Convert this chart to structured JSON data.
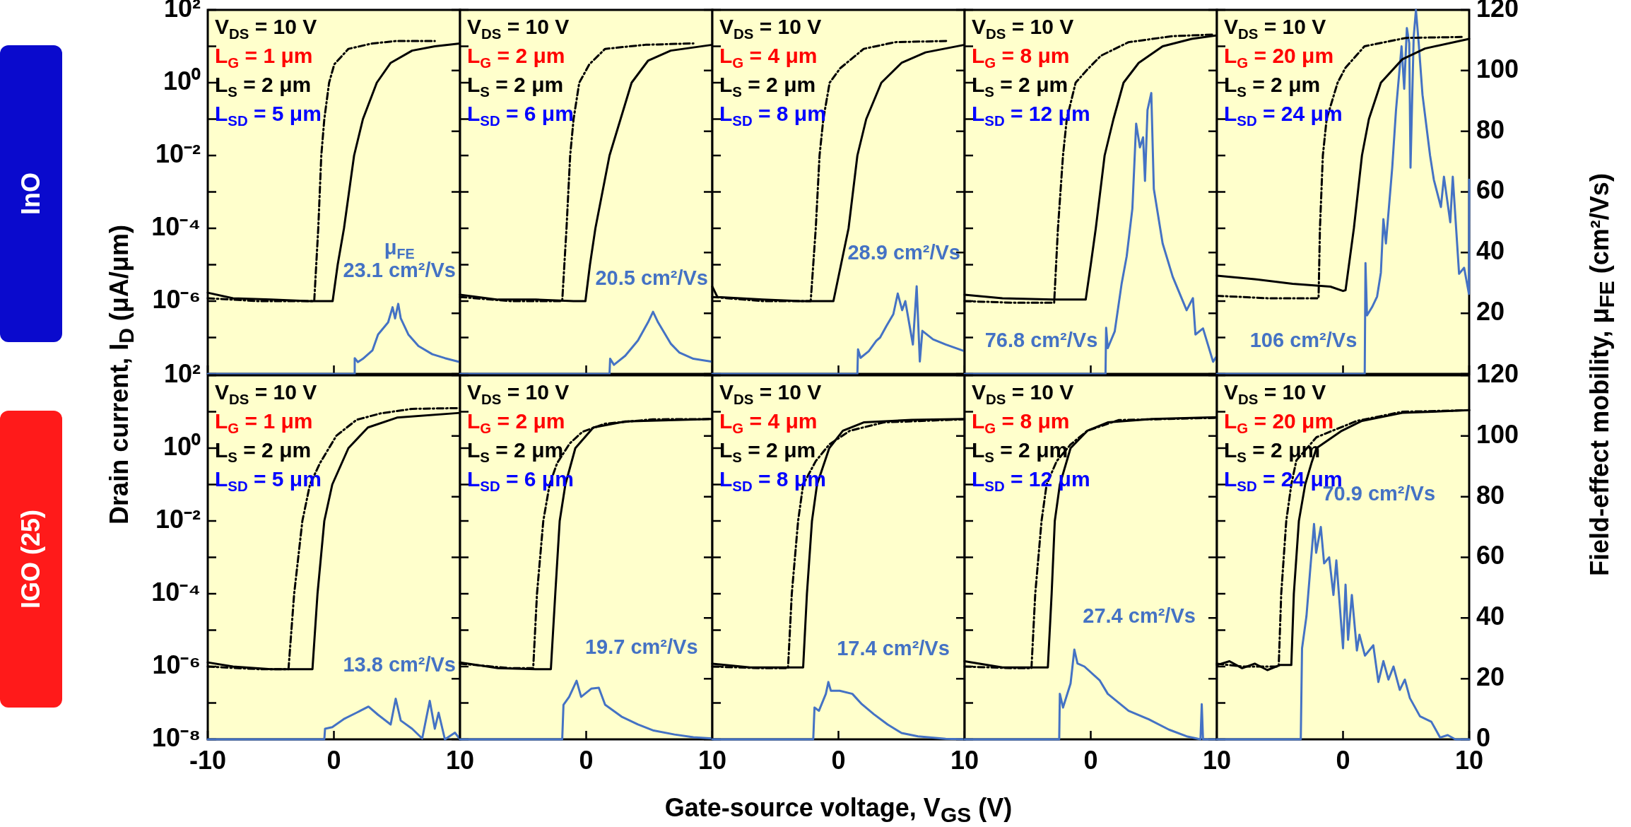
{
  "chart_data": [
    {
      "type": "line",
      "title": "InO",
      "ylabel": "Drain current, I$_{D}$ (μA/μm)",
      "log": true,
      "tick_labels": "y",
      "xlim": [
        -10,
        10
      ],
      "ylim": [
        1e-08,
        100
      ],
      "y2lim": [
        0,
        120
      ],
      "yticks": [
        {
          "value": 100,
          "label": "10²"
        },
        {
          "value": 10,
          "label": null
        },
        {
          "value": 1,
          "label": "10⁰"
        },
        {
          "value": 0.1,
          "label": null
        },
        {
          "value": 0.01,
          "label": "10⁻²"
        },
        {
          "value": 0.001,
          "label": null
        },
        {
          "value": 0.0001,
          "label": "10⁻⁴"
        },
        {
          "value": 1e-05,
          "label": null
        },
        {
          "value": 1e-06,
          "label": "10⁻⁶"
        },
        {
          "value": 1e-07,
          "label": null
        },
        {
          "value": 1e-08,
          "label": null
        }
      ],
      "series": [
        {
          "color": "#000000",
          "x": [
            -10,
            -8,
            -5,
            -2,
            -0.1,
            0.3,
            0.8,
            1.6,
            2.3,
            3.4,
            4.5,
            6.2,
            8,
            10
          ],
          "values": [
            1.7e-06,
            1.2e-06,
            1.1e-06,
            1e-06,
            1e-06,
            1e-05,
            0.0001,
            0.01,
            0.1,
            1,
            3.5,
            7.6,
            10,
            12
          ]
        },
        {
          "color": "#000000",
          "line_style": "dashed",
          "x": [
            -10,
            -6,
            -3,
            -1.56,
            -1.24,
            -1,
            -0.76,
            -0.38,
            0.03,
            1.15,
            3.06,
            4.97,
            8
          ],
          "values": [
            1.2e-06,
            1e-06,
            1e-06,
            1e-06,
            0.0001,
            0.01,
            0.1,
            1,
            3.2,
            8.5,
            12,
            14,
            14
          ]
        },
        {
          "color": "#4472c4",
          "axis": "y2",
          "x": [
            -10,
            1.6,
            1.65,
            1.9,
            2.3,
            3.06,
            3.5,
            4.3,
            4.65,
            4.85,
            5.1,
            5.3,
            5.9,
            6.7,
            7.8,
            8.8,
            10
          ],
          "values": [
            0,
            0,
            5.2,
            3.9,
            5,
            7.8,
            13,
            17,
            22,
            18.3,
            23.1,
            18.3,
            13,
            9.2,
            6.5,
            5.2,
            3.9
          ]
        }
      ],
      "annotations": [
        "V$_{DS}$ = 10 V",
        "L$_{G}$ = 1 μm",
        "L$_{S}$ = 2 μm",
        "L$_{SD}$ = 5 μm",
        "μ$_{FE}$",
        "23.1 cm²/Vs"
      ]
    },
    {
      "type": "line",
      "log": true,
      "tick_labels": false,
      "xlim": [
        -10,
        10
      ],
      "ylim": [
        1e-08,
        100
      ],
      "y2lim": [
        0,
        120
      ],
      "series": [
        {
          "color": "#000000",
          "x": [
            -10,
            -7,
            -4,
            -1,
            -0.06,
            0.3,
            0.73,
            1.85,
            3.6,
            4.9,
            6.7,
            10
          ],
          "values": [
            1.5e-06,
            1.1e-06,
            1.1e-06,
            1e-06,
            1e-06,
            1e-05,
            0.0001,
            0.01,
            1,
            4,
            7.6,
            11
          ]
        },
        {
          "color": "#000000",
          "line_style": "dashed",
          "x": [
            -10,
            -6,
            -1.9,
            -1.56,
            -1.27,
            -1,
            -0.55,
            0.25,
            1.5,
            4.7,
            8.5
          ],
          "values": [
            1.3e-06,
            1e-06,
            1e-06,
            0.0001,
            0.01,
            0.1,
            1,
            3.2,
            8.5,
            11,
            12
          ]
        },
        {
          "color": "#4472c4",
          "axis": "y2",
          "x": [
            -10,
            1.85,
            1.9,
            2.2,
            3.1,
            4.1,
            4.9,
            5.3,
            5.7,
            6.7,
            7.4,
            8.5,
            10
          ],
          "values": [
            0,
            0,
            5,
            3,
            6,
            11,
            17,
            20.5,
            17,
            10,
            7,
            5,
            4
          ]
        }
      ],
      "annotations": [
        "V$_{DS}$ = 10 V",
        "L$_{G}$ = 2 μm",
        "L$_{S}$ = 2 μm",
        "L$_{SD}$ = 6 μm",
        "20.5 cm²/Vs"
      ]
    },
    {
      "type": "line",
      "log": true,
      "tick_labels": false,
      "xlim": [
        -10,
        10
      ],
      "ylim": [
        1e-08,
        100
      ],
      "y2lim": [
        0,
        120
      ],
      "series": [
        {
          "color": "#000000",
          "x": [
            -10,
            -9.6,
            -6,
            -3,
            -0.4,
            0.2,
            0.8,
            1.5,
            2.2,
            3.4,
            5,
            6.9,
            10
          ],
          "values": [
            2.5e-06,
            1.3e-06,
            1.1e-06,
            1e-06,
            1e-06,
            1e-05,
            0.0001,
            0.01,
            0.1,
            1,
            3.5,
            6.8,
            11
          ]
        },
        {
          "color": "#000000",
          "line_style": "dashed",
          "x": [
            -10,
            -6,
            -2.2,
            -1.8,
            -1.5,
            -1.2,
            -0.7,
            0.14,
            2,
            4.5,
            8.6
          ],
          "values": [
            1.3e-06,
            1e-06,
            1e-06,
            0.0001,
            0.01,
            0.1,
            1,
            2.5,
            8.5,
            13,
            14
          ]
        },
        {
          "color": "#4472c4",
          "axis": "y2",
          "x": [
            -10,
            1.5,
            1.55,
            1.75,
            2.4,
            3,
            3.3,
            3.8,
            4.35,
            4.7,
            5.05,
            5.3,
            5.9,
            6.2,
            6.45,
            6.65,
            7.5,
            8.5,
            10
          ],
          "values": [
            0,
            0,
            8.1,
            5.3,
            7.5,
            10.9,
            12,
            15.8,
            19.7,
            26.5,
            21,
            24,
            9.7,
            28.9,
            4.1,
            14.2,
            11.4,
            9.7,
            7.5
          ]
        }
      ],
      "annotations": [
        "V$_{DS}$ = 10 V",
        "L$_{G}$ = 4 μm",
        "L$_{S}$ = 2 μm",
        "L$_{SD}$ = 8 μm",
        "28.9 cm²/Vs"
      ]
    },
    {
      "type": "line",
      "log": true,
      "tick_labels": false,
      "xlim": [
        -10,
        10
      ],
      "ylim": [
        1e-08,
        100
      ],
      "y2lim": [
        0,
        120
      ],
      "series": [
        {
          "color": "#000000",
          "x": [
            -10,
            -7,
            -3,
            -0.4,
            0,
            0.4,
            1.1,
            1.8,
            2.6,
            3.8,
            5.7,
            8,
            10
          ],
          "values": [
            1.5e-06,
            1.2e-06,
            1.1e-06,
            1.1e-06,
            1e-05,
            0.0001,
            0.01,
            0.1,
            1,
            3.5,
            10,
            16,
            20
          ]
        },
        {
          "color": "#000000",
          "line_style": "dashed",
          "x": [
            -10,
            -6,
            -2.9,
            -2.6,
            -2.2,
            -1.9,
            -1.2,
            -0.27,
            0.8,
            3,
            6.5,
            9.8
          ],
          "values": [
            1e-06,
            9e-07,
            9e-07,
            0.0001,
            0.01,
            0.1,
            1,
            2.3,
            5.5,
            13,
            19,
            21
          ]
        },
        {
          "color": "#4472c4",
          "axis": "y2",
          "x": [
            -10,
            1.17,
            1.22,
            1.35,
            1.9,
            2.45,
            2.85,
            3.3,
            3.6,
            3.9,
            4.15,
            4.3,
            4.5,
            4.8,
            5,
            5.7,
            6.5,
            7.6,
            8.1,
            8.3,
            8.9,
            9.7,
            10
          ],
          "values": [
            0,
            0,
            15.2,
            8.5,
            14,
            29.8,
            38.8,
            54.5,
            82.5,
            74.7,
            78,
            63.6,
            87,
            92.6,
            61,
            43,
            32,
            21,
            25,
            13,
            15,
            4,
            6
          ]
        }
      ],
      "annotations": [
        "V$_{DS}$ = 10 V",
        "L$_{G}$ = 8 μm",
        "L$_{S}$ = 2 μm",
        "L$_{SD}$ = 12 μm",
        "76.8 cm²/Vs"
      ]
    },
    {
      "type": "line",
      "y2label": "Field-effect mobility,  μ$_{FE}$ (cm²/Vs)",
      "log": true,
      "tick_labels": "y2",
      "xlim": [
        -10,
        10
      ],
      "ylim": [
        1e-08,
        100
      ],
      "y2lim": [
        0,
        120
      ],
      "y2ticks": [
        {
          "value": 0,
          "label": null
        },
        20,
        40,
        60,
        80,
        100,
        120
      ],
      "series": [
        {
          "color": "#000000",
          "x": [
            -10,
            -7,
            -4,
            -1,
            0,
            0.2,
            0.86,
            1.5,
            2.05,
            3,
            4.7,
            6.5,
            10
          ],
          "values": [
            5e-06,
            4e-06,
            3e-06,
            2.5e-06,
            1.9e-06,
            2e-06,
            0.0001,
            0.01,
            0.1,
            1,
            4.4,
            8.7,
            16
          ]
        },
        {
          "color": "#000000",
          "line_style": "dashed",
          "x": [
            -10,
            -6,
            -3,
            -1.94,
            -1.83,
            -1.6,
            -1.3,
            -0.43,
            0.2,
            1.7,
            5,
            9.4
          ],
          "values": [
            1.4e-06,
            1.2e-06,
            1.2e-06,
            1.2e-06,
            0.0001,
            0.01,
            0.1,
            1,
            2.6,
            10,
            17,
            18
          ]
        },
        {
          "color": "#4472c4",
          "axis": "y2",
          "x": [
            -10,
            1.72,
            1.78,
            1.9,
            2.3,
            2.7,
            3,
            3.2,
            3.4,
            3.9,
            4.2,
            4.64,
            4.85,
            5.06,
            5.25,
            5.35,
            5.6,
            5.78,
            6,
            6.3,
            6.9,
            7.2,
            7.76,
            8,
            8.5,
            8.7,
            9.2,
            9.6,
            9.98,
            10
          ],
          "values": [
            0,
            0,
            36.5,
            19.3,
            22,
            25.5,
            33.4,
            51,
            43,
            68,
            87,
            108,
            94,
            114,
            109,
            68,
            111,
            120,
            109,
            92,
            72,
            64,
            55,
            65,
            50,
            65,
            33,
            35,
            26.4,
            64
          ]
        }
      ],
      "annotations": [
        "V$_{DS}$ = 10 V",
        "L$_{G}$ = 20 μm",
        "L$_{S}$ = 2 μm",
        "L$_{SD}$ = 24 μm",
        "106 cm²/Vs"
      ]
    },
    {
      "type": "line",
      "title": "IGO (25)",
      "log": true,
      "tick_labels": "xy",
      "xlim": [
        -10,
        10
      ],
      "ylim": [
        1e-08,
        100
      ],
      "y2lim": [
        0,
        120
      ],
      "xticks": [
        -10,
        0,
        10
      ],
      "yticks": [
        {
          "value": 100,
          "label": "10²"
        },
        {
          "value": 10,
          "label": null
        },
        {
          "value": 1,
          "label": "10⁰"
        },
        {
          "value": 0.1,
          "label": null
        },
        {
          "value": 0.01,
          "label": "10⁻²"
        },
        {
          "value": 0.001,
          "label": null
        },
        {
          "value": 0.0001,
          "label": "10⁻⁴"
        },
        {
          "value": 1e-05,
          "label": null
        },
        {
          "value": 1e-06,
          "label": "10⁻⁶"
        },
        {
          "value": 1e-07,
          "label": null
        },
        {
          "value": 1e-08,
          "label": "10⁻⁸"
        }
      ],
      "series": [
        {
          "color": "#000000",
          "x": [
            -10,
            -8,
            -5,
            -1.7,
            -1.3,
            -0.76,
            -0.13,
            1.15,
            2.7,
            5,
            10
          ],
          "values": [
            1.3e-06,
            1e-06,
            8.5e-07,
            8.5e-07,
            0.0001,
            0.01,
            0.1,
            1,
            3.7,
            6.9,
            9.3
          ]
        },
        {
          "color": "#000000",
          "line_style": "dashed",
          "x": [
            -10,
            -6,
            -3.6,
            -3.15,
            -2.5,
            -1.9,
            -1.1,
            0.2,
            1.8,
            3.7,
            6.2,
            10
          ],
          "values": [
            1e-06,
            8.5e-07,
            8.5e-07,
            0.0001,
            0.01,
            0.1,
            0.39,
            2.2,
            6,
            9,
            12,
            12.6
          ]
        },
        {
          "color": "#4472c4",
          "axis": "y2",
          "x": [
            -10,
            -0.76,
            -0.7,
            -0.13,
            0.83,
            1.8,
            2.74,
            3.5,
            4.5,
            4.9,
            5.3,
            6.2,
            7,
            7.6,
            8,
            8.3,
            8.8,
            9.6,
            10
          ],
          "values": [
            0,
            0,
            3.5,
            4,
            6.8,
            8.8,
            10.8,
            8.1,
            4.9,
            13.4,
            6.2,
            3.5,
            0.3,
            12.7,
            3.5,
            8.8,
            0,
            2.2,
            0
          ]
        }
      ],
      "annotations": [
        "V$_{DS}$ = 10 V",
        "L$_{G}$ = 1 μm",
        "L$_{S}$ = 2 μm",
        "L$_{SD}$ = 5 μm",
        "13.8 cm²/Vs"
      ]
    },
    {
      "type": "line",
      "log": true,
      "tick_labels": "x",
      "xlim": [
        -10,
        10
      ],
      "ylim": [
        1e-08,
        100
      ],
      "y2lim": [
        0,
        120
      ],
      "xticks": [
        0,
        10
      ],
      "series": [
        {
          "color": "#000000",
          "x": [
            -10,
            -7,
            -4,
            -2.8,
            -2.45,
            -2.1,
            -1.65,
            -0.86,
            0.57,
            3.1,
            10
          ],
          "values": [
            1.3e-06,
            9e-07,
            8.5e-07,
            8.5e-07,
            0.0001,
            0.01,
            0.1,
            1,
            3.7,
            5.4,
            6.3
          ]
        },
        {
          "color": "#000000",
          "line_style": "dashed",
          "x": [
            -10,
            -6,
            -4.2,
            -3.9,
            -3.4,
            -2.9,
            -2.3,
            -1.3,
            -0.3,
            1.5,
            5.3,
            10
          ],
          "values": [
            1.2e-06,
            9e-07,
            9e-07,
            0.0001,
            0.01,
            0.1,
            0.39,
            1.35,
            2.8,
            4.7,
            6.2,
            6.3
          ]
        },
        {
          "color": "#4472c4",
          "axis": "y2",
          "x": [
            -10,
            -1.9,
            -1.8,
            -1.35,
            -0.76,
            -0.4,
            0.4,
            1,
            1.5,
            2.8,
            4.1,
            5.35,
            7,
            8.5,
            10
          ],
          "values": [
            0,
            0,
            11.4,
            14,
            19.3,
            14,
            16.7,
            17,
            11.4,
            7.5,
            4.9,
            2.9,
            1.6,
            0.7,
            0.3
          ]
        }
      ],
      "annotations": [
        "V$_{DS}$ = 10 V",
        "L$_{G}$ = 2 μm",
        "L$_{S}$ = 2 μm",
        "L$_{SD}$ = 6 μm",
        "19.7 cm²/Vs"
      ]
    },
    {
      "type": "line",
      "xlabel": "Gate-source voltage, V$_{GS}$ (V)",
      "log": true,
      "tick_labels": "x",
      "xlim": [
        -10,
        10
      ],
      "ylim": [
        1e-08,
        100
      ],
      "y2lim": [
        0,
        120
      ],
      "xticks": [
        0,
        10
      ],
      "series": [
        {
          "color": "#000000",
          "x": [
            -10,
            -7,
            -4,
            -2.8,
            -2.5,
            -2.1,
            -1.7,
            -0.73,
            0.35,
            2,
            5.8,
            10
          ],
          "values": [
            1.2e-06,
            9.5e-07,
            9.5e-07,
            9.5e-07,
            0.0001,
            0.01,
            0.1,
            1,
            3,
            5.1,
            6,
            6.3
          ]
        },
        {
          "color": "#000000",
          "line_style": "dashed",
          "x": [
            -10,
            -6,
            -4,
            -3.7,
            -3.2,
            -2.8,
            -1.8,
            -0.73,
            0.9,
            3.6,
            10
          ],
          "values": [
            1e-06,
            9e-07,
            9e-07,
            0.0001,
            0.01,
            0.1,
            0.44,
            1.26,
            3,
            5.1,
            6.2
          ]
        },
        {
          "color": "#4472c4",
          "axis": "y2",
          "x": [
            -10,
            -2,
            -1.9,
            -1.55,
            -1,
            -0.8,
            -0.6,
            0.1,
            1.1,
            1.85,
            2.8,
            3.9,
            5,
            6.3,
            8.5,
            10
          ],
          "values": [
            0,
            0,
            10.5,
            9.4,
            15,
            18.9,
            16,
            16,
            15,
            11.6,
            8.3,
            4.9,
            2.1,
            1,
            0.2,
            0
          ]
        }
      ],
      "annotations": [
        "V$_{DS}$ = 10 V",
        "L$_{G}$ = 4 μm",
        "L$_{S}$ = 2 μm",
        "L$_{SD}$ = 8 μm",
        "17.4 cm²/Vs"
      ]
    },
    {
      "type": "line",
      "log": true,
      "tick_labels": "x",
      "xlim": [
        -10,
        10
      ],
      "ylim": [
        1e-08,
        100
      ],
      "y2lim": [
        0,
        120
      ],
      "xticks": [
        0,
        10
      ],
      "series": [
        {
          "color": "#000000",
          "x": [
            -10,
            -7,
            -4,
            -3.4,
            -3.1,
            -2.85,
            -2.45,
            -1.6,
            -0.27,
            1.35,
            4.9,
            10
          ],
          "values": [
            1.4e-06,
            9.5e-07,
            9.5e-07,
            9.5e-07,
            0.0001,
            0.01,
            0.1,
            1,
            3,
            5.1,
            6.3,
            7.1
          ]
        },
        {
          "color": "#000000",
          "line_style": "dashed",
          "x": [
            -10,
            -6,
            -4.7,
            -4.4,
            -3.9,
            -3.5,
            -2.7,
            -1.6,
            -0.27,
            2.2,
            10
          ],
          "values": [
            1e-06,
            9e-07,
            9e-07,
            0.0001,
            0.01,
            0.1,
            0.44,
            1.26,
            3,
            5.9,
            6.8
          ]
        },
        {
          "color": "#4472c4",
          "axis": "y2",
          "x": [
            -10,
            -2.5,
            -2.45,
            -2.2,
            -1.6,
            -1.3,
            -1.05,
            -0.5,
            0.7,
            1.35,
            3,
            4.6,
            6.2,
            7.6,
            8.7,
            8.8,
            8.9,
            10
          ],
          "values": [
            0,
            0,
            15,
            10.5,
            18.4,
            29.6,
            25,
            24,
            19.5,
            15,
            9.4,
            6.6,
            3.2,
            1,
            0,
            11.6,
            0,
            0
          ]
        }
      ],
      "annotations": [
        "V$_{DS}$ = 10 V",
        "L$_{G}$ = 8 μm",
        "L$_{S}$ = 2 μm",
        "L$_{SD}$ = 12 μm",
        "27.4 cm²/Vs"
      ]
    },
    {
      "type": "line",
      "log": true,
      "tick_labels": "xy2",
      "xlim": [
        -10,
        10
      ],
      "ylim": [
        1e-08,
        100
      ],
      "y2lim": [
        0,
        120
      ],
      "xticks": [
        0,
        10
      ],
      "y2ticks": [
        0,
        20,
        40,
        60,
        80,
        100,
        120
      ],
      "series": [
        {
          "color": "#000000",
          "x": [
            -10,
            -9,
            -8,
            -7,
            -6,
            -5,
            -4.1,
            -3.9,
            -3.5,
            -3,
            -2.5,
            -2.1,
            -0.17,
            1.5,
            4.7,
            10
          ],
          "values": [
            1.1e-06,
            1.4e-06,
            9e-07,
            1.2e-06,
            8e-07,
            1.1e-06,
            1.1e-06,
            0.0001,
            0.01,
            0.1,
            0.39,
            1,
            2.9,
            5.6,
            9.3,
            11
          ]
        },
        {
          "color": "#000000",
          "line_style": "dashed",
          "x": [
            -10,
            -8,
            -6,
            -5.1,
            -4.9,
            -4.5,
            -4.1,
            -3.7,
            -2.1,
            1.1,
            4.7,
            10
          ],
          "values": [
            1.2e-06,
            1e-06,
            1e-06,
            1e-06,
            0.0001,
            0.01,
            0.1,
            0.46,
            2,
            5.6,
            10,
            11
          ]
        },
        {
          "color": "#4472c4",
          "axis": "y2",
          "x": [
            -10,
            -3.35,
            -3.25,
            -2.9,
            -2.6,
            -2.3,
            -2.13,
            -1.76,
            -1.5,
            -1.1,
            -0.76,
            -0.53,
            0,
            0.2,
            0.4,
            0.7,
            1.1,
            1.3,
            1.74,
            2.4,
            2.8,
            3.2,
            3.6,
            4,
            4.5,
            4.9,
            5.3,
            6.1,
            7,
            7.7,
            8.3,
            8.9,
            10
          ],
          "values": [
            0,
            0,
            30,
            40.6,
            56,
            71,
            61.5,
            70,
            58,
            60,
            47.6,
            59,
            30,
            51,
            32.8,
            47.6,
            29.3,
            34.5,
            27.6,
            31,
            18.9,
            25.8,
            19.7,
            24,
            16.3,
            19.7,
            13.6,
            7.6,
            5.8,
            0.6,
            1.4,
            0,
            0
          ]
        }
      ],
      "annotations": [
        "V$_{DS}$ = 10 V",
        "L$_{G}$ = 20 μm",
        "L$_{S}$ = 2 μm",
        "L$_{SD}$ = 24 μm",
        "70.9 cm²/Vs"
      ]
    }
  ]
}
